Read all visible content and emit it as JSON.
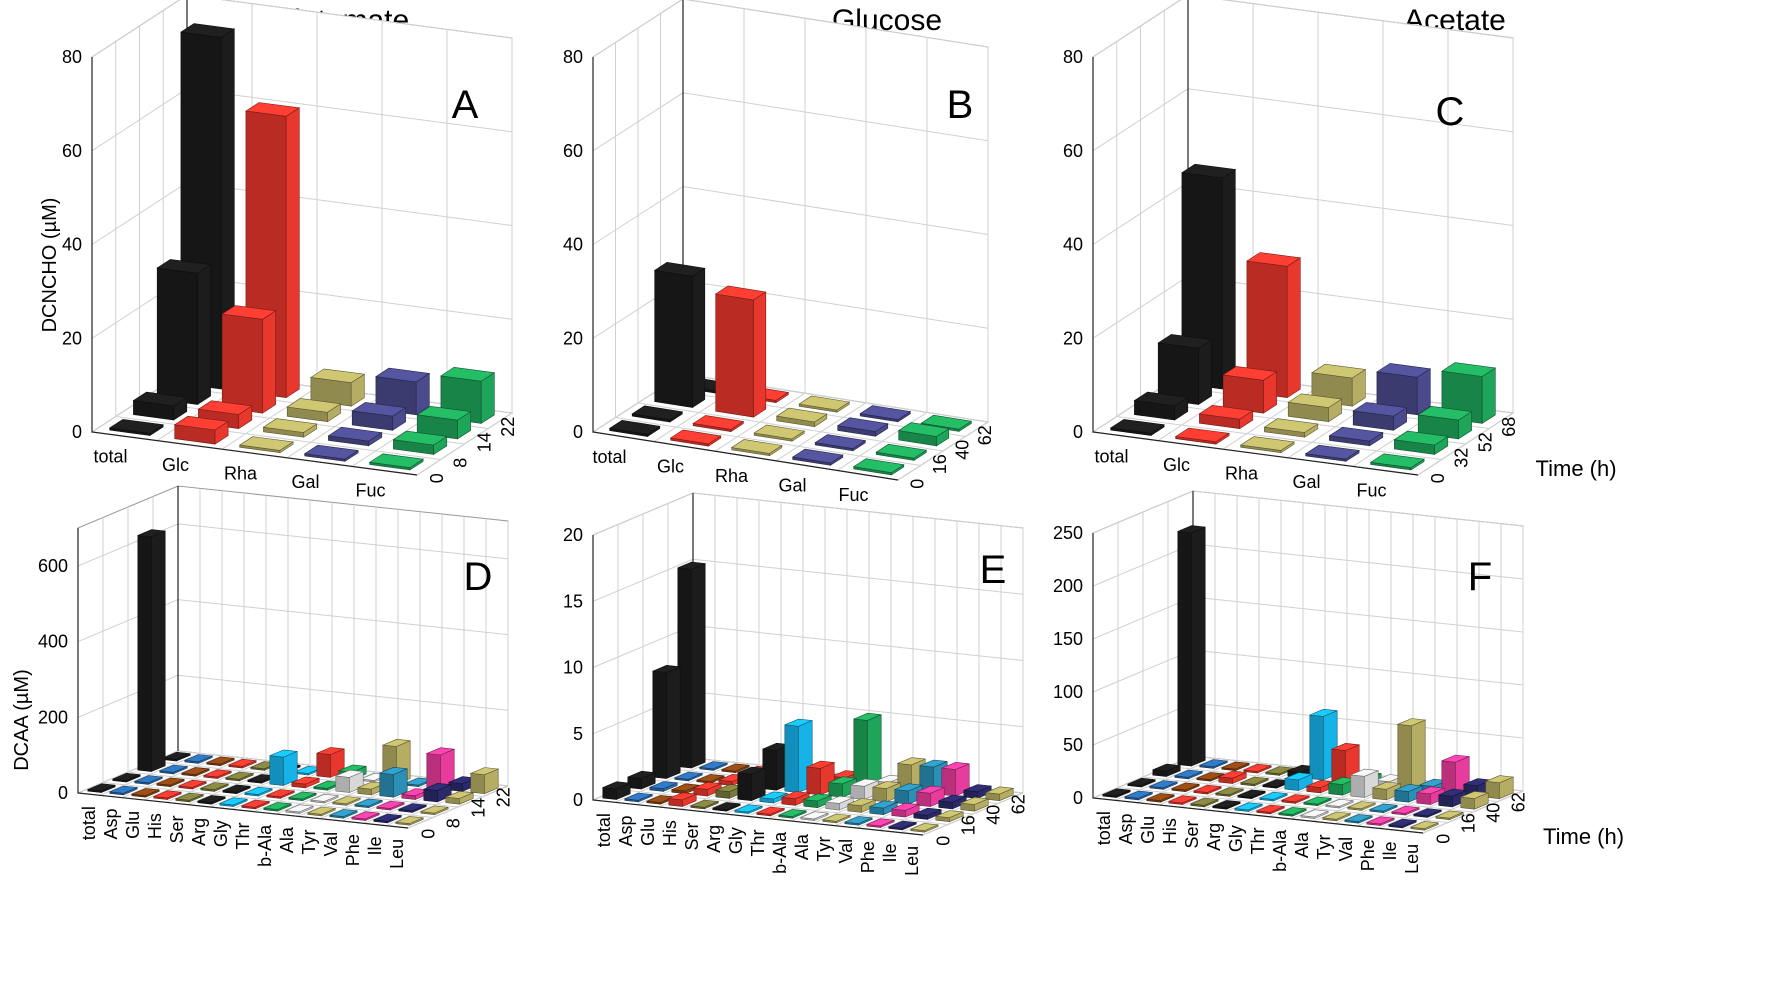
{
  "figure": {
    "column_titles": [
      "Glutamate",
      "Glucose",
      "Acetate"
    ],
    "top_ylabel": "DCNCHO (µM)",
    "bottom_ylabel": "DCAA (µM)",
    "time_axis_label": "Time (h)"
  },
  "chart_data": [
    {
      "id": "A",
      "letter": "A",
      "type": "bar3d",
      "title": "Glutamate",
      "ylabel": "DCNCHO (µM)",
      "ylim": [
        0,
        80
      ],
      "yticks": [
        0,
        20,
        40,
        60,
        80
      ],
      "categories": [
        "total",
        "Glc",
        "Rha",
        "Gal",
        "Fuc"
      ],
      "times": [
        "0",
        "8",
        "14",
        "22"
      ],
      "values": [
        [
          0,
          3,
          28,
          75
        ],
        [
          3,
          3,
          20,
          60
        ],
        [
          0,
          1,
          2,
          5
        ],
        [
          0,
          1,
          3,
          7
        ],
        [
          0,
          2,
          4,
          9
        ]
      ]
    },
    {
      "id": "B",
      "letter": "B",
      "type": "bar3d",
      "title": "Glucose",
      "ylabel": "",
      "ylim": [
        0,
        80
      ],
      "yticks": [
        0,
        20,
        40,
        60,
        80
      ],
      "categories": [
        "total",
        "Glc",
        "Rha",
        "Gal",
        "Fuc"
      ],
      "times": [
        "0",
        "16",
        "40",
        "62"
      ],
      "values": [
        [
          0,
          0,
          28,
          0
        ],
        [
          0,
          0,
          25,
          0
        ],
        [
          0,
          0,
          1,
          0
        ],
        [
          0,
          0,
          1,
          0
        ],
        [
          0,
          0,
          2,
          0
        ]
      ]
    },
    {
      "id": "C",
      "letter": "C",
      "type": "bar3d",
      "title": "Acetate",
      "ylabel": "",
      "ylim": [
        0,
        80
      ],
      "yticks": [
        0,
        20,
        40,
        60,
        80
      ],
      "categories": [
        "total",
        "Glc",
        "Rha",
        "Gal",
        "Fuc"
      ],
      "times": [
        "0",
        "32",
        "52",
        "68"
      ],
      "values": [
        [
          0,
          3,
          12,
          45
        ],
        [
          0,
          2,
          7,
          28
        ],
        [
          0,
          1,
          3,
          6
        ],
        [
          0,
          1,
          3,
          8
        ],
        [
          0,
          2,
          4,
          10
        ]
      ],
      "time_label": "Time (h)"
    },
    {
      "id": "D",
      "letter": "D",
      "type": "bar3d",
      "title": "",
      "ylabel": "DCAA (µM)",
      "ylim": [
        0,
        700
      ],
      "yticks": [
        0,
        200,
        400,
        600
      ],
      "categories": [
        "total",
        "Asp",
        "Glu",
        "His",
        "Ser",
        "Arg",
        "Gly",
        "Thr",
        "b-Ala",
        "Ala",
        "Tyr",
        "Val",
        "Phe",
        "Ile",
        "Leu"
      ],
      "times": [
        "0",
        "8",
        "14",
        "22"
      ],
      "values": [
        [
          0,
          0,
          620,
          0
        ],
        [
          0,
          0,
          0,
          0
        ],
        [
          0,
          0,
          0,
          0
        ],
        [
          0,
          0,
          0,
          0
        ],
        [
          0,
          0,
          0,
          0
        ],
        [
          0,
          0,
          0,
          0
        ],
        [
          0,
          0,
          75,
          0
        ],
        [
          0,
          0,
          10,
          60
        ],
        [
          0,
          0,
          5,
          20
        ],
        [
          0,
          0,
          40,
          0
        ],
        [
          0,
          0,
          15,
          100
        ],
        [
          0,
          0,
          60,
          0
        ],
        [
          0,
          0,
          10,
          90
        ],
        [
          0,
          0,
          30,
          20
        ],
        [
          0,
          0,
          15,
          50
        ]
      ]
    },
    {
      "id": "E",
      "letter": "E",
      "type": "bar3d",
      "title": "",
      "ylabel": "",
      "ylim": [
        0,
        20
      ],
      "yticks": [
        0,
        5,
        10,
        15,
        20
      ],
      "categories": [
        "total",
        "Asp",
        "Glu",
        "His",
        "Ser",
        "Arg",
        "Gly",
        "Thr",
        "b-Ala",
        "Ala",
        "Tyr",
        "Val",
        "Phe",
        "Ile",
        "Leu"
      ],
      "times": [
        "0",
        "16",
        "40",
        "62"
      ],
      "values": [
        [
          0.8,
          0.8,
          8,
          15
        ],
        [
          0,
          0.2,
          0,
          0
        ],
        [
          0,
          0.2,
          0,
          0
        ],
        [
          0.5,
          0.5,
          0.3,
          0
        ],
        [
          0,
          0.5,
          0.3,
          0
        ],
        [
          0,
          2,
          3,
          0.3
        ],
        [
          0,
          0.3,
          5,
          0
        ],
        [
          0,
          0.5,
          2,
          0.5
        ],
        [
          0,
          0.5,
          1,
          5
        ],
        [
          0,
          0.5,
          1,
          0.5
        ],
        [
          0,
          0.5,
          1,
          2
        ],
        [
          0,
          0.5,
          1,
          2
        ],
        [
          0,
          0.5,
          1,
          2
        ],
        [
          0,
          0.3,
          0.5,
          0.5
        ],
        [
          0,
          0.3,
          0.5,
          0.5
        ]
      ]
    },
    {
      "id": "F",
      "letter": "F",
      "type": "bar3d",
      "title": "",
      "ylabel": "",
      "ylim": [
        0,
        250
      ],
      "yticks": [
        0,
        50,
        100,
        150,
        200,
        250
      ],
      "categories": [
        "total",
        "Asp",
        "Glu",
        "His",
        "Ser",
        "Arg",
        "Gly",
        "Thr",
        "b-Ala",
        "Ala",
        "Tyr",
        "Val",
        "Phe",
        "Ile",
        "Leu"
      ],
      "times": [
        "0",
        "16",
        "40",
        "62"
      ],
      "values": [
        [
          0,
          0,
          5,
          220
        ],
        [
          0,
          0,
          0,
          0
        ],
        [
          0,
          0,
          0,
          0
        ],
        [
          0,
          0,
          5,
          0
        ],
        [
          0,
          0,
          0,
          0
        ],
        [
          0,
          0,
          0,
          5
        ],
        [
          0,
          0,
          10,
          60
        ],
        [
          0,
          0,
          5,
          30
        ],
        [
          0,
          0,
          10,
          5
        ],
        [
          0,
          0,
          20,
          5
        ],
        [
          0,
          0,
          10,
          60
        ],
        [
          0,
          0,
          10,
          5
        ],
        [
          0,
          0,
          10,
          30
        ],
        [
          0,
          0,
          10,
          10
        ],
        [
          0,
          0,
          10,
          15
        ]
      ],
      "time_label": "Time (h)"
    }
  ],
  "colors": {
    "total": "#1c1c1c",
    "Glc": "#e8372c",
    "Rha": "#b5ad63",
    "Gal": "#4a4a8c",
    "Fuc": "#1fa55a",
    "Asp": "#2b6cb0",
    "Glu": "#8b4513",
    "His": "#e8372c",
    "Ser": "#7a7a3a",
    "Arg": "#1c1c1c",
    "Gly": "#16b3e8",
    "Thr": "#e8372c",
    "b-Ala": "#1fa55a",
    "Ala": "#d8d8d8",
    "Tyr": "#b5ad63",
    "Val": "#2c8fb5",
    "Phe": "#e83c9c",
    "Ile": "#2a2a6a",
    "Leu": "#b5ad63"
  }
}
